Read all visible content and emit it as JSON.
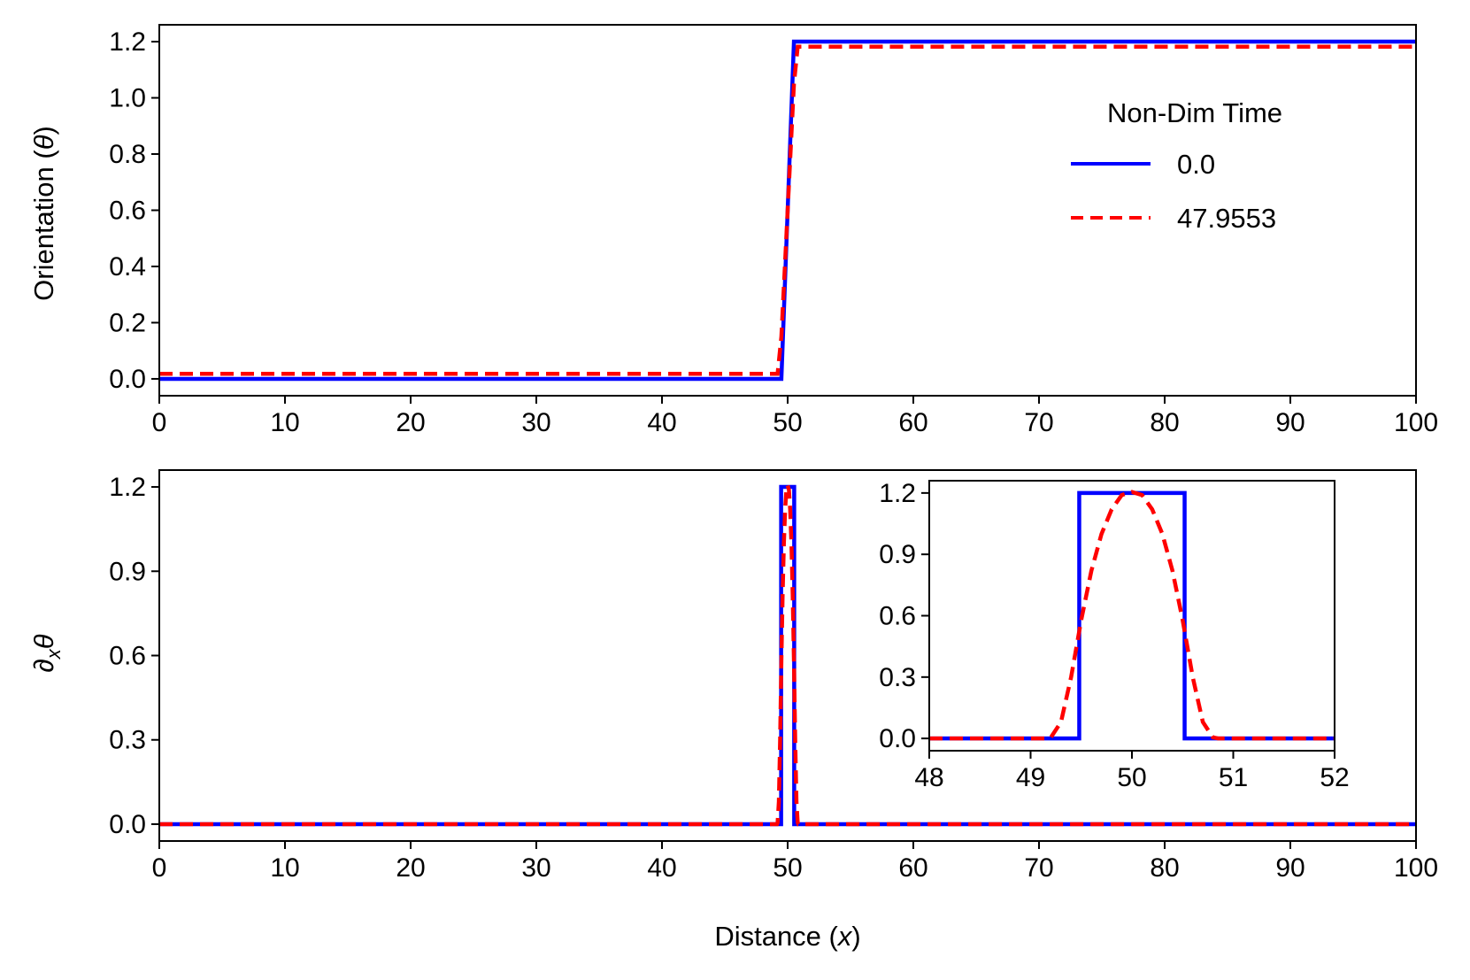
{
  "chart_data": [
    {
      "id": "top",
      "type": "line",
      "title": "",
      "xlabel": "",
      "ylabel": "Orientation (θ)",
      "xlim": [
        0,
        100
      ],
      "ylim": [
        -0.06,
        1.26
      ],
      "xticks": [
        0,
        10,
        20,
        30,
        40,
        50,
        60,
        70,
        80,
        90,
        100
      ],
      "xtick_labels": [
        "0",
        "10",
        "20",
        "30",
        "40",
        "50",
        "60",
        "70",
        "80",
        "90",
        "100"
      ],
      "yticks": [
        0.0,
        0.2,
        0.4,
        0.6,
        0.8,
        1.0,
        1.2
      ],
      "ytick_labels": [
        "0.0",
        "0.2",
        "0.4",
        "0.6",
        "0.8",
        "1.0",
        "1.2"
      ],
      "legend": {
        "title": "Non-Dim Time",
        "placement": "center-right",
        "entries": [
          "0.0",
          "47.9553"
        ]
      },
      "series": [
        {
          "name": "0.0",
          "color": "#0000ff",
          "style": "solid",
          "x": [
            0,
            49.5,
            50.5,
            100
          ],
          "y": [
            0,
            0,
            1.2,
            1.2
          ]
        },
        {
          "name": "47.9553",
          "color": "#ff0000",
          "style": "dashed",
          "x": [
            0,
            49.2,
            49.5,
            50.0,
            50.5,
            50.8,
            100
          ],
          "y": [
            0.018,
            0.018,
            0.15,
            0.6,
            1.05,
            1.182,
            1.182
          ]
        }
      ]
    },
    {
      "id": "bottom",
      "type": "line",
      "title": "",
      "xlabel": "Distance (x)",
      "ylabel": "∂xθ",
      "xlim": [
        0,
        100
      ],
      "ylim": [
        -0.06,
        1.26
      ],
      "xticks": [
        0,
        10,
        20,
        30,
        40,
        50,
        60,
        70,
        80,
        90,
        100
      ],
      "xtick_labels": [
        "0",
        "10",
        "20",
        "30",
        "40",
        "50",
        "60",
        "70",
        "80",
        "90",
        "100"
      ],
      "yticks": [
        0.0,
        0.3,
        0.6,
        0.9,
        1.2
      ],
      "ytick_labels": [
        "0.0",
        "0.3",
        "0.6",
        "0.9",
        "1.2"
      ],
      "series": [
        {
          "name": "0.0",
          "color": "#0000ff",
          "style": "solid",
          "x": [
            0,
            49.48,
            49.48,
            50.52,
            50.52,
            100
          ],
          "y": [
            0,
            0,
            1.2,
            1.2,
            0,
            0
          ]
        },
        {
          "name": "47.9553",
          "color": "#ff0000",
          "style": "dashed",
          "x": [
            0,
            49.15,
            49.2,
            49.3,
            49.4,
            49.5,
            49.6,
            49.7,
            49.8,
            49.9,
            50.0,
            50.1,
            50.2,
            50.3,
            50.4,
            50.5,
            50.6,
            50.7,
            50.8,
            50.85,
            100
          ],
          "y": [
            0,
            0,
            0.005,
            0.08,
            0.3,
            0.58,
            0.82,
            1.0,
            1.12,
            1.19,
            1.205,
            1.19,
            1.12,
            1.0,
            0.82,
            0.58,
            0.3,
            0.08,
            0.005,
            0,
            0
          ]
        }
      ]
    },
    {
      "id": "inset",
      "type": "line",
      "title": "",
      "xlabel": "",
      "ylabel": "",
      "xlim": [
        48,
        52
      ],
      "ylim": [
        -0.06,
        1.26
      ],
      "xticks": [
        48,
        49,
        50,
        51,
        52
      ],
      "xtick_labels": [
        "48",
        "49",
        "50",
        "51",
        "52"
      ],
      "yticks": [
        0.0,
        0.3,
        0.6,
        0.9,
        1.2
      ],
      "ytick_labels": [
        "0.0",
        "0.3",
        "0.6",
        "0.9",
        "1.2"
      ],
      "series": [
        {
          "name": "0.0",
          "color": "#0000ff",
          "style": "solid",
          "x": [
            48,
            49.48,
            49.48,
            50.52,
            50.52,
            52
          ],
          "y": [
            0,
            0,
            1.2,
            1.2,
            0,
            0
          ]
        },
        {
          "name": "47.9553",
          "color": "#ff0000",
          "style": "dashed",
          "x": [
            48,
            49.15,
            49.2,
            49.3,
            49.4,
            49.5,
            49.6,
            49.7,
            49.8,
            49.9,
            50.0,
            50.1,
            50.2,
            50.3,
            50.4,
            50.5,
            50.6,
            50.7,
            50.8,
            50.85,
            52
          ],
          "y": [
            0,
            0,
            0.005,
            0.08,
            0.3,
            0.58,
            0.82,
            1.0,
            1.12,
            1.19,
            1.205,
            1.19,
            1.12,
            1.0,
            0.82,
            0.58,
            0.3,
            0.08,
            0.005,
            0,
            0
          ]
        }
      ]
    }
  ]
}
